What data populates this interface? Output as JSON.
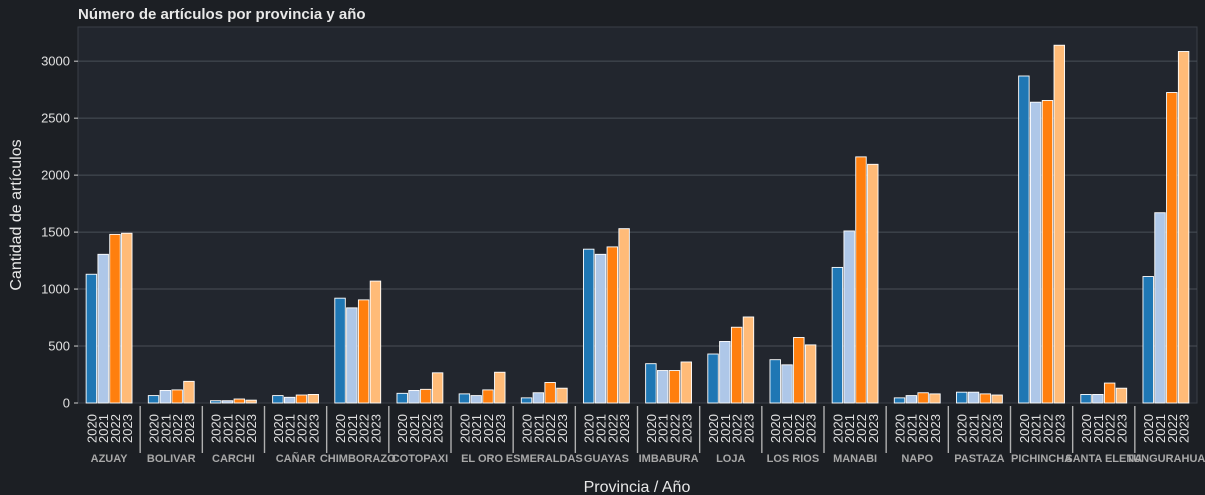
{
  "chart_data": {
    "type": "bar",
    "title": "Número de artículos por provincia y año",
    "xlabel": "Provincia / Año",
    "ylabel": "Cantidad de artículos",
    "ylim": [
      0,
      3300
    ],
    "yticks": [
      0,
      500,
      1000,
      1500,
      2000,
      2500,
      3000
    ],
    "grid": true,
    "categories": [
      "AZUAY",
      "BOLIVAR",
      "CARCHI",
      "CAÑAR",
      "CHIMBORAZO",
      "COTOPAXI",
      "EL ORO",
      "ESMERALDAS",
      "GUAYAS",
      "IMBABURA",
      "LOJA",
      "LOS RIOS",
      "MANABI",
      "NAPO",
      "PASTAZA",
      "PICHINCHA",
      "SANTA ELENA",
      "TUNGURAHUA"
    ],
    "series": [
      {
        "name": "2020",
        "color": "#1f77b4",
        "values": [
          1130,
          65,
          20,
          65,
          920,
          85,
          80,
          45,
          1350,
          345,
          430,
          380,
          1190,
          45,
          95,
          2870,
          75,
          1110
        ]
      },
      {
        "name": "2021",
        "color": "#aec7e8",
        "values": [
          1305,
          110,
          20,
          50,
          835,
          110,
          65,
          90,
          1305,
          285,
          540,
          335,
          1510,
          65,
          95,
          2640,
          75,
          1670
        ]
      },
      {
        "name": "2022",
        "color": "#ff7f0e",
        "values": [
          1480,
          115,
          35,
          70,
          905,
          120,
          115,
          180,
          1370,
          285,
          665,
          575,
          2160,
          90,
          80,
          2655,
          175,
          2725
        ]
      },
      {
        "name": "2023",
        "color": "#ffbb78",
        "values": [
          1490,
          190,
          25,
          75,
          1070,
          265,
          270,
          130,
          1530,
          360,
          755,
          510,
          2095,
          80,
          70,
          3140,
          130,
          3085
        ]
      }
    ]
  }
}
